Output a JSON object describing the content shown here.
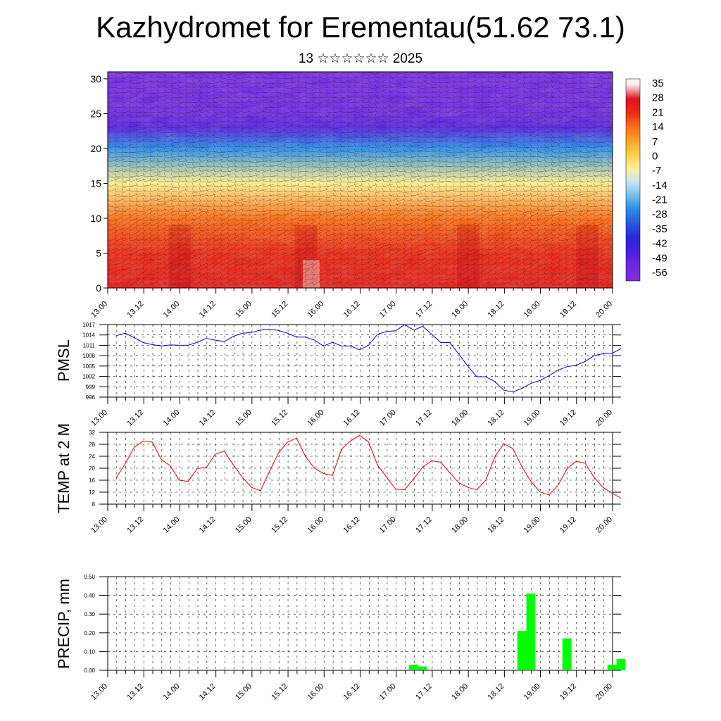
{
  "header": {
    "title": "Kazhydromet for Erementau(51.62 73.1)",
    "subtitle": "13 ☆☆☆☆☆☆ 2025"
  },
  "x_tick_labels": [
    "13.00",
    "13.12",
    "14.00",
    "14.12",
    "15.00",
    "15.12",
    "16.00",
    "16.12",
    "17.00",
    "17.12",
    "18.00",
    "18.12",
    "19.00",
    "19.12",
    "20.00"
  ],
  "chart_data": [
    {
      "type": "heatmap",
      "title": "",
      "ylabel": "",
      "y_ticks": [
        0,
        5,
        10,
        15,
        20,
        25,
        30
      ],
      "ylim": [
        0,
        31
      ],
      "colorbar_labels": [
        "35",
        "28",
        "21",
        "14",
        "7",
        "0",
        "-7",
        "-14",
        "-21",
        "-28",
        "-35",
        "-42",
        "-49",
        "-56"
      ],
      "color_scale": [
        "#fdf2f2",
        "#e31a1c",
        "#ff7f00",
        "#ffe66b",
        "#a6cee3",
        "#1e90ff",
        "#2b2bcf",
        "#7a2be2"
      ],
      "vertical_temperature_profile": [
        {
          "height": 0,
          "temp": 24
        },
        {
          "height": 5,
          "temp": 21
        },
        {
          "height": 10,
          "temp": 14
        },
        {
          "height": 15,
          "temp": -6
        },
        {
          "height": 20,
          "temp": -28
        },
        {
          "height": 23,
          "temp": -52
        },
        {
          "height": 25,
          "temp": -56
        },
        {
          "height": 31,
          "temp": -60
        }
      ]
    },
    {
      "type": "line",
      "ylabel": "PMSL",
      "ylim": [
        996,
        1017
      ],
      "y_ticks": [
        996,
        999,
        1002,
        1005,
        1008,
        1011,
        1014,
        1017
      ],
      "series": [
        {
          "color": "#0000cc",
          "values": [
            1013.8,
            1014.5,
            1013.2,
            1011.8,
            1011.2,
            1010.8,
            1011.1,
            1011.0,
            1011.0,
            1011.9,
            1013.0,
            1012.5,
            1012.1,
            1013.6,
            1014.5,
            1014.7,
            1015.4,
            1015.7,
            1015.3,
            1014.5,
            1013.4,
            1013.4,
            1012.5,
            1010.8,
            1011.9,
            1010.8,
            1010.8,
            1009.7,
            1011.0,
            1014.2,
            1015.0,
            1015.2,
            1017.0,
            1015.4,
            1016.5,
            1014.2,
            1011.8,
            1011.8,
            1008.5,
            1005.0,
            1001.9,
            1001.9,
            1000.5,
            998.0,
            997.5,
            998.5,
            1000.0,
            1000.8,
            1002.2,
            1003.8,
            1004.8,
            1005.2,
            1006.3,
            1008.0,
            1008.6,
            1008.7,
            1010.0
          ]
        }
      ]
    },
    {
      "type": "line",
      "ylabel": "TEMP at 2 M",
      "ylim": [
        8,
        32
      ],
      "y_ticks": [
        8,
        12,
        16,
        20,
        24,
        28,
        32
      ],
      "series": [
        {
          "color": "#dd0000",
          "values": [
            16.8,
            21.5,
            27.0,
            29.1,
            28.7,
            23.0,
            20.8,
            16.0,
            15.6,
            19.9,
            20.2,
            24.7,
            25.7,
            21.1,
            17.0,
            13.6,
            12.5,
            18.9,
            25.1,
            28.7,
            30.1,
            23.9,
            20.0,
            18.2,
            17.6,
            26.4,
            29.1,
            31.0,
            28.8,
            21.0,
            17.0,
            13.0,
            12.8,
            16.5,
            20.3,
            22.5,
            22.0,
            18.5,
            15.2,
            13.6,
            12.8,
            16.0,
            23.8,
            28.2,
            26.6,
            20.5,
            15.6,
            12.1,
            11.1,
            14.2,
            19.8,
            22.3,
            21.8,
            17.0,
            13.6,
            11.7,
            10.0
          ]
        }
      ]
    },
    {
      "type": "bar",
      "ylabel": "PRECIP, mm",
      "ylim": [
        0,
        0.5
      ],
      "y_ticks": [
        "0.00",
        "0.10",
        "0.20",
        "0.30",
        "0.40",
        "0.50"
      ],
      "bar_color": "#00ff00",
      "bars": [
        {
          "x": 16.5,
          "value": 0.03
        },
        {
          "x": 17,
          "value": 0.02
        },
        {
          "x": 22.5,
          "value": 0.21
        },
        {
          "x": 23,
          "value": 0.41
        },
        {
          "x": 25,
          "value": 0.17
        },
        {
          "x": 27.5,
          "value": 0.03
        },
        {
          "x": 28,
          "value": 0.06
        }
      ]
    }
  ]
}
